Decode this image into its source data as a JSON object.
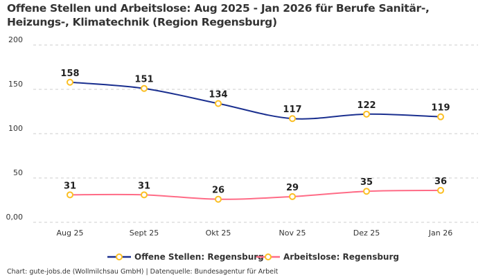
{
  "chart_data": {
    "type": "line",
    "title": "Offene Stellen und Arbeitslose: Aug 2025 - Jan 2026 für Berufe Sanitär-, Heizungs-, Klimatechnik (Region Regensburg)",
    "categories": [
      "Aug 25",
      "Sept 25",
      "Okt 25",
      "Nov 25",
      "Dez 25",
      "Jan 26"
    ],
    "y_ticks": [
      "0,00",
      "50",
      "100",
      "150",
      "200"
    ],
    "ylim": [
      0,
      200
    ],
    "grid": true,
    "legend_position": "bottom",
    "series": [
      {
        "name": "Offene Stellen: Regensburg",
        "values": [
          158,
          151,
          134,
          117,
          122,
          119
        ],
        "color": "#1a2f8f"
      },
      {
        "name": "Arbeitslose: Regensburg",
        "values": [
          31,
          31,
          26,
          29,
          35,
          36
        ],
        "color": "#ff6b86"
      }
    ],
    "marker_color": "#fbbf24",
    "footer": "Chart: gute-jobs.de (Wollmilchsau GmbH) | Datenquelle: Bundesagentur für Arbeit"
  }
}
